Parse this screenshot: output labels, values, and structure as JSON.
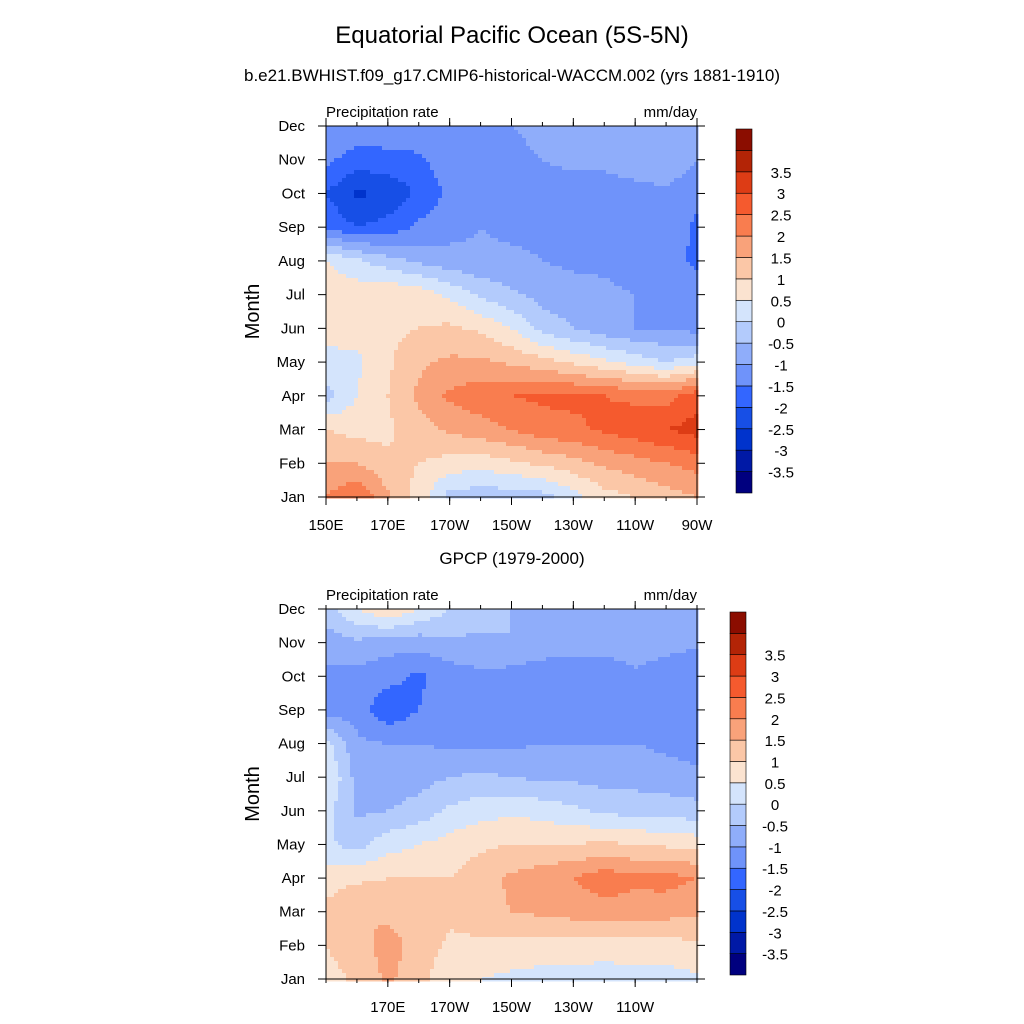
{
  "figure": {
    "title": "Equatorial Pacific Ocean (5S-5N)",
    "panel_titles": [
      "b.e21.BWHIST.f09_g17.CMIP6-historical-WACCM.002 (yrs 1881-1910)",
      "GPCP (1979-2000)"
    ]
  },
  "colors": {
    "palette": [
      "#00007f",
      "#0019a6",
      "#0033cc",
      "#174fe6",
      "#3366ff",
      "#6f93fa",
      "#8fadfa",
      "#b3cbfc",
      "#d4e4fc",
      "#fbe3d0",
      "#fbc7a7",
      "#f9a27a",
      "#f97d4f",
      "#f55a2e",
      "#dd3c15",
      "#b32406",
      "#8b0d00"
    ],
    "levels": [
      -3.5,
      -3,
      -2.5,
      -2,
      -1.5,
      -1,
      -0.5,
      0,
      0.5,
      1,
      1.5,
      2,
      2.5,
      3,
      3.5
    ]
  },
  "chart_data": [
    {
      "type": "heatmap",
      "subtitle": "b.e21.BWHIST.f09_g17.CMIP6-historical-WACCM.002 (yrs 1881-1910)",
      "left_label": "Precipitation rate",
      "right_label": "mm/day",
      "ylabel": "Month",
      "x_ticks": [
        "150E",
        "170E",
        "170W",
        "150W",
        "130W",
        "110W",
        "90W"
      ],
      "y_ticks": [
        "Jan",
        "Feb",
        "Mar",
        "Apr",
        "May",
        "Jun",
        "Jul",
        "Aug",
        "Sep",
        "Oct",
        "Nov",
        "Dec"
      ],
      "x": [
        150,
        160,
        170,
        180,
        190,
        200,
        210,
        220,
        230,
        240,
        250,
        260,
        270
      ],
      "y": [
        "Jan",
        "Feb",
        "Mar",
        "Apr",
        "May",
        "Jun",
        "Jul",
        "Aug",
        "Sep",
        "Oct",
        "Nov",
        "Dec"
      ],
      "z": [
        [
          2.0,
          2.5,
          1.6,
          0.8,
          -0.2,
          -0.3,
          -0.3,
          -0.2,
          0.3,
          0.8,
          1.0,
          1.3,
          1.5
        ],
        [
          1.5,
          1.5,
          1.1,
          1.0,
          0.8,
          0.7,
          0.9,
          1.1,
          1.3,
          1.6,
          1.8,
          2.0,
          2.2
        ],
        [
          1.0,
          0.8,
          0.9,
          1.3,
          1.6,
          1.8,
          2.0,
          2.3,
          2.4,
          2.6,
          2.8,
          3.0,
          3.2
        ],
        [
          -0.2,
          0.5,
          1.0,
          1.6,
          2.1,
          2.3,
          2.5,
          2.6,
          2.6,
          2.5,
          2.4,
          2.3,
          2.8
        ],
        [
          0.4,
          0.4,
          0.9,
          1.4,
          1.6,
          1.6,
          1.4,
          1.2,
          0.9,
          0.6,
          0.3,
          0.0,
          0.3
        ],
        [
          0.6,
          0.7,
          0.9,
          1.0,
          1.1,
          0.9,
          0.5,
          -0.2,
          -0.5,
          -0.8,
          -1.0,
          -1.0,
          -1.2
        ],
        [
          0.9,
          0.8,
          1.0,
          0.8,
          0.4,
          -0.1,
          -0.4,
          -0.7,
          -0.8,
          -0.9,
          -1.0,
          -1.1,
          -1.2
        ],
        [
          0.5,
          0.1,
          -0.3,
          -0.6,
          -0.8,
          -0.9,
          -0.9,
          -1.0,
          -1.1,
          -1.1,
          -1.2,
          -1.3,
          -1.6
        ],
        [
          -1.6,
          -2.0,
          -1.8,
          -1.4,
          -1.2,
          -1.0,
          -1.1,
          -1.1,
          -1.1,
          -1.1,
          -1.2,
          -1.2,
          -1.6
        ],
        [
          -2.0,
          -2.6,
          -2.4,
          -1.9,
          -1.4,
          -1.3,
          -1.3,
          -1.2,
          -1.2,
          -1.2,
          -1.2,
          -1.1,
          -1.4
        ],
        [
          -1.4,
          -1.7,
          -1.7,
          -1.6,
          -1.2,
          -1.1,
          -1.1,
          -1.0,
          -0.9,
          -0.9,
          -0.7,
          -0.6,
          -1.0
        ],
        [
          -1.2,
          -1.2,
          -1.1,
          -1.1,
          -1.0,
          -1.0,
          -1.0,
          -0.9,
          -0.8,
          -0.7,
          -0.6,
          -0.6,
          -0.7
        ]
      ],
      "zlim": [
        -3.75,
        3.75
      ]
    },
    {
      "type": "heatmap",
      "subtitle": "GPCP (1979-2000)",
      "left_label": "Precipitation rate",
      "right_label": "mm/day",
      "ylabel": "Month",
      "x_ticks": [
        "170E",
        "170W",
        "150W",
        "130W",
        "110W"
      ],
      "y_ticks": [
        "Jan",
        "Feb",
        "Mar",
        "Apr",
        "May",
        "Jun",
        "Jul",
        "Aug",
        "Sep",
        "Oct",
        "Nov",
        "Dec"
      ],
      "x": [
        150,
        160,
        170,
        180,
        190,
        200,
        210,
        220,
        230,
        240,
        250,
        260,
        270
      ],
      "y": [
        "Jan",
        "Feb",
        "Mar",
        "Apr",
        "May",
        "Jun",
        "Jul",
        "Aug",
        "Sep",
        "Oct",
        "Nov",
        "Dec"
      ],
      "z": [
        [
          0.8,
          1.1,
          1.6,
          1.2,
          0.6,
          0.5,
          0.4,
          0.3,
          0.3,
          0.2,
          0.3,
          0.3,
          0.4
        ],
        [
          1.0,
          1.3,
          1.7,
          1.3,
          0.9,
          0.9,
          0.8,
          0.8,
          0.8,
          0.8,
          0.8,
          0.8,
          0.9
        ],
        [
          1.1,
          1.5,
          1.4,
          1.2,
          1.1,
          1.3,
          1.5,
          1.6,
          1.7,
          1.8,
          1.8,
          1.7,
          1.6
        ],
        [
          0.8,
          0.9,
          1.0,
          1.0,
          1.0,
          1.3,
          1.6,
          1.8,
          2.0,
          2.3,
          2.1,
          2.2,
          2.0
        ],
        [
          0.1,
          -0.2,
          0.3,
          0.5,
          0.7,
          0.9,
          1.0,
          1.0,
          1.0,
          1.1,
          1.0,
          0.9,
          0.8
        ],
        [
          0.2,
          -0.6,
          -0.5,
          -0.3,
          0.1,
          0.3,
          0.4,
          0.3,
          0.1,
          -0.1,
          -0.2,
          -0.2,
          -0.3
        ],
        [
          0.6,
          -0.7,
          -0.8,
          -0.7,
          -0.5,
          -0.4,
          -0.5,
          -0.6,
          -0.6,
          -0.7,
          -0.7,
          -0.8,
          -0.9
        ],
        [
          0.2,
          -0.9,
          -1.0,
          -1.0,
          -1.1,
          -1.1,
          -1.1,
          -1.0,
          -1.0,
          -1.0,
          -1.0,
          -1.1,
          -1.2
        ],
        [
          -1.3,
          -1.2,
          -1.9,
          -1.5,
          -1.1,
          -1.3,
          -1.4,
          -1.5,
          -1.5,
          -1.4,
          -1.3,
          -1.2,
          -1.5
        ],
        [
          -1.1,
          -1.2,
          -1.3,
          -1.6,
          -1.3,
          -1.1,
          -1.2,
          -1.4,
          -1.5,
          -1.3,
          -1.1,
          -1.3,
          -1.5
        ],
        [
          -0.8,
          -0.6,
          -0.8,
          -0.8,
          -0.6,
          -0.6,
          -0.5,
          -0.6,
          -0.7,
          -0.8,
          -0.7,
          -0.8,
          -0.9
        ],
        [
          -0.2,
          0.5,
          1.0,
          0.5,
          0.0,
          -0.3,
          -0.5,
          -0.5,
          -0.5,
          -0.6,
          -0.6,
          -0.6,
          -0.7
        ]
      ],
      "zlim": [
        -3.75,
        3.75
      ]
    }
  ]
}
